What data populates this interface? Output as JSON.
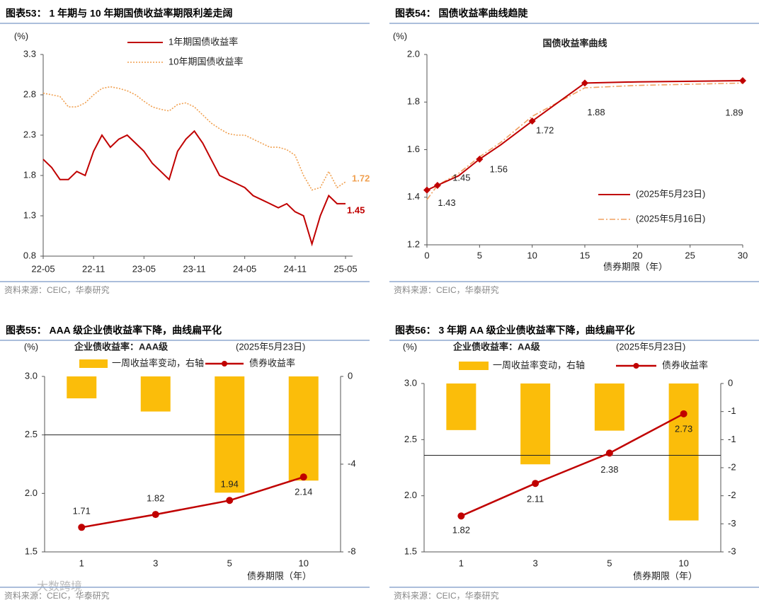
{
  "watermark": "大数跨境",
  "chart_data": [
    {
      "type": "line",
      "panel_title": "图表53：  1 年期与 10 年期国债收益率期限利差走阔",
      "source": "资料来源：CEIC，华泰研究",
      "y_unit": "(%)",
      "x": [
        "22-05",
        "22-06",
        "22-07",
        "22-08",
        "22-09",
        "22-10",
        "22-11",
        "22-12",
        "23-01",
        "23-02",
        "23-03",
        "23-04",
        "23-05",
        "23-06",
        "23-07",
        "23-08",
        "23-09",
        "23-10",
        "23-11",
        "23-12",
        "24-01",
        "24-02",
        "24-03",
        "24-04",
        "24-05",
        "24-06",
        "24-07",
        "24-08",
        "24-09",
        "24-10",
        "24-11",
        "24-12",
        "25-01",
        "25-02",
        "25-03",
        "25-04",
        "25-05"
      ],
      "xticks": [
        "22-05",
        "22-11",
        "23-05",
        "23-11",
        "24-05",
        "24-11",
        "25-05"
      ],
      "ylim": [
        0.8,
        3.3
      ],
      "yticks": [
        0.8,
        1.3,
        1.8,
        2.3,
        2.8,
        3.3
      ],
      "legend": "top",
      "series": [
        {
          "name": "1年期国债收益率",
          "color": "#c00000",
          "line_style": "solid",
          "last_label": "1.45",
          "values": [
            2.0,
            1.9,
            1.75,
            1.75,
            1.85,
            1.8,
            2.1,
            2.3,
            2.15,
            2.25,
            2.3,
            2.2,
            2.1,
            1.95,
            1.85,
            1.75,
            2.1,
            2.25,
            2.35,
            2.2,
            2.0,
            1.8,
            1.75,
            1.7,
            1.65,
            1.55,
            1.5,
            1.45,
            1.4,
            1.45,
            1.35,
            1.3,
            0.95,
            1.3,
            1.55,
            1.45,
            1.45
          ]
        },
        {
          "name": "10年期国债收益率",
          "color": "#f0a050",
          "line_style": "dotted",
          "last_label": "1.72",
          "values": [
            2.82,
            2.8,
            2.78,
            2.65,
            2.65,
            2.7,
            2.8,
            2.88,
            2.9,
            2.88,
            2.85,
            2.8,
            2.72,
            2.65,
            2.62,
            2.6,
            2.68,
            2.7,
            2.65,
            2.55,
            2.45,
            2.38,
            2.32,
            2.3,
            2.3,
            2.25,
            2.2,
            2.15,
            2.15,
            2.12,
            2.05,
            1.8,
            1.62,
            1.65,
            1.85,
            1.65,
            1.72
          ]
        }
      ]
    },
    {
      "type": "line",
      "panel_title": "图表54：  国债收益率曲线趋陡",
      "source": "资料来源：CEIC，华泰研究",
      "title": "国债收益率曲线",
      "y_unit": "(%)",
      "x_label": "债券期限（年）",
      "x": [
        0,
        1,
        3,
        5,
        7,
        10,
        15,
        20,
        30
      ],
      "xlim": [
        0,
        30
      ],
      "xticks": [
        0,
        5,
        10,
        15,
        20,
        25,
        30
      ],
      "ylim": [
        1.2,
        2.0
      ],
      "yticks": [
        1.2,
        1.4,
        1.6,
        1.8,
        {
          "value": 2.0,
          "label": "2.0"
        }
      ],
      "legend": "bottom-right",
      "series": [
        {
          "name": "(2025年5月23日)",
          "color": "#c00000",
          "line_style": "solid",
          "marker": "diamond",
          "values": [
            1.43,
            1.45,
            1.49,
            1.56,
            1.62,
            1.72,
            1.88,
            1.885,
            1.89
          ],
          "value_labels": [
            "1.43",
            "1.45",
            null,
            "1.56",
            null,
            "1.72",
            "1.88",
            null,
            "1.89"
          ]
        },
        {
          "name": "(2025年5月16日)",
          "color": "#f0a060",
          "line_style": "dashdot",
          "values": [
            1.39,
            1.45,
            1.5,
            1.57,
            1.63,
            1.74,
            1.86,
            1.87,
            1.88
          ]
        }
      ]
    },
    {
      "type": "combo",
      "panel_title": "图表55：  AAA 级企业债收益率下降，曲线扁平化",
      "source": "资料来源：CEIC，华泰研究",
      "title": "企业债收益率：AAA级",
      "subtitle": "(2025年5月23日)",
      "y_unit": "(%)",
      "x_label": "债券期限（年）",
      "categories": [
        "1",
        "3",
        "5",
        "10"
      ],
      "ylim": [
        1.5,
        3.0
      ],
      "yticks": [
        1.5,
        {
          "value": 2.0,
          "label": "2.0"
        },
        2.5,
        {
          "value": 3.0,
          "label": "3.0"
        }
      ],
      "y2lim": [
        -8,
        0
      ],
      "y2ticks": [
        -8,
        -4,
        0
      ],
      "reference_line": 2.5,
      "series": [
        {
          "name": "一周收益率变动，右轴",
          "type": "bar",
          "axis": "y2",
          "color": "#fbbd0a",
          "values": [
            -1.0,
            -1.6,
            -5.3,
            -4.75
          ]
        },
        {
          "name": "债券收益率",
          "type": "line",
          "color": "#c00000",
          "values": [
            1.71,
            1.82,
            1.94,
            2.14
          ]
        }
      ]
    },
    {
      "type": "combo",
      "panel_title": "图表56：  3 年期 AA 级企业债收益率下降，曲线扁平化",
      "source": "资料来源：CEIC，华泰研究",
      "title": "企业债收益率：AA级",
      "subtitle": "(2025年5月23日)",
      "y_unit": "(%)",
      "x_label": "债券期限（年）",
      "categories": [
        "1",
        "3",
        "5",
        "10"
      ],
      "ylim": [
        1.5,
        3.0
      ],
      "yticks": [
        1.5,
        {
          "value": 2.0,
          "label": "2.0"
        },
        2.5,
        {
          "value": 3.0,
          "label": "3.0"
        }
      ],
      "y2lim": [
        -3,
        0
      ],
      "y2ticks": [
        {
          "value": -3,
          "label": "-3"
        },
        {
          "value": -2.5,
          "label": "-3"
        },
        {
          "value": -2,
          "label": "-2"
        },
        {
          "value": -1.5,
          "label": "-2"
        },
        {
          "value": -1,
          "label": "-1"
        },
        {
          "value": -0.5,
          "label": "-1"
        },
        0
      ],
      "reference_line": 2.36,
      "series": [
        {
          "name": "一周收益率变动，右轴",
          "type": "bar",
          "axis": "y2",
          "color": "#fbbd0a",
          "values": [
            -0.83,
            -1.44,
            -0.84,
            -2.44
          ]
        },
        {
          "name": "债券收益率",
          "type": "line",
          "color": "#c00000",
          "values": [
            1.82,
            2.11,
            2.38,
            2.73
          ]
        }
      ]
    }
  ]
}
